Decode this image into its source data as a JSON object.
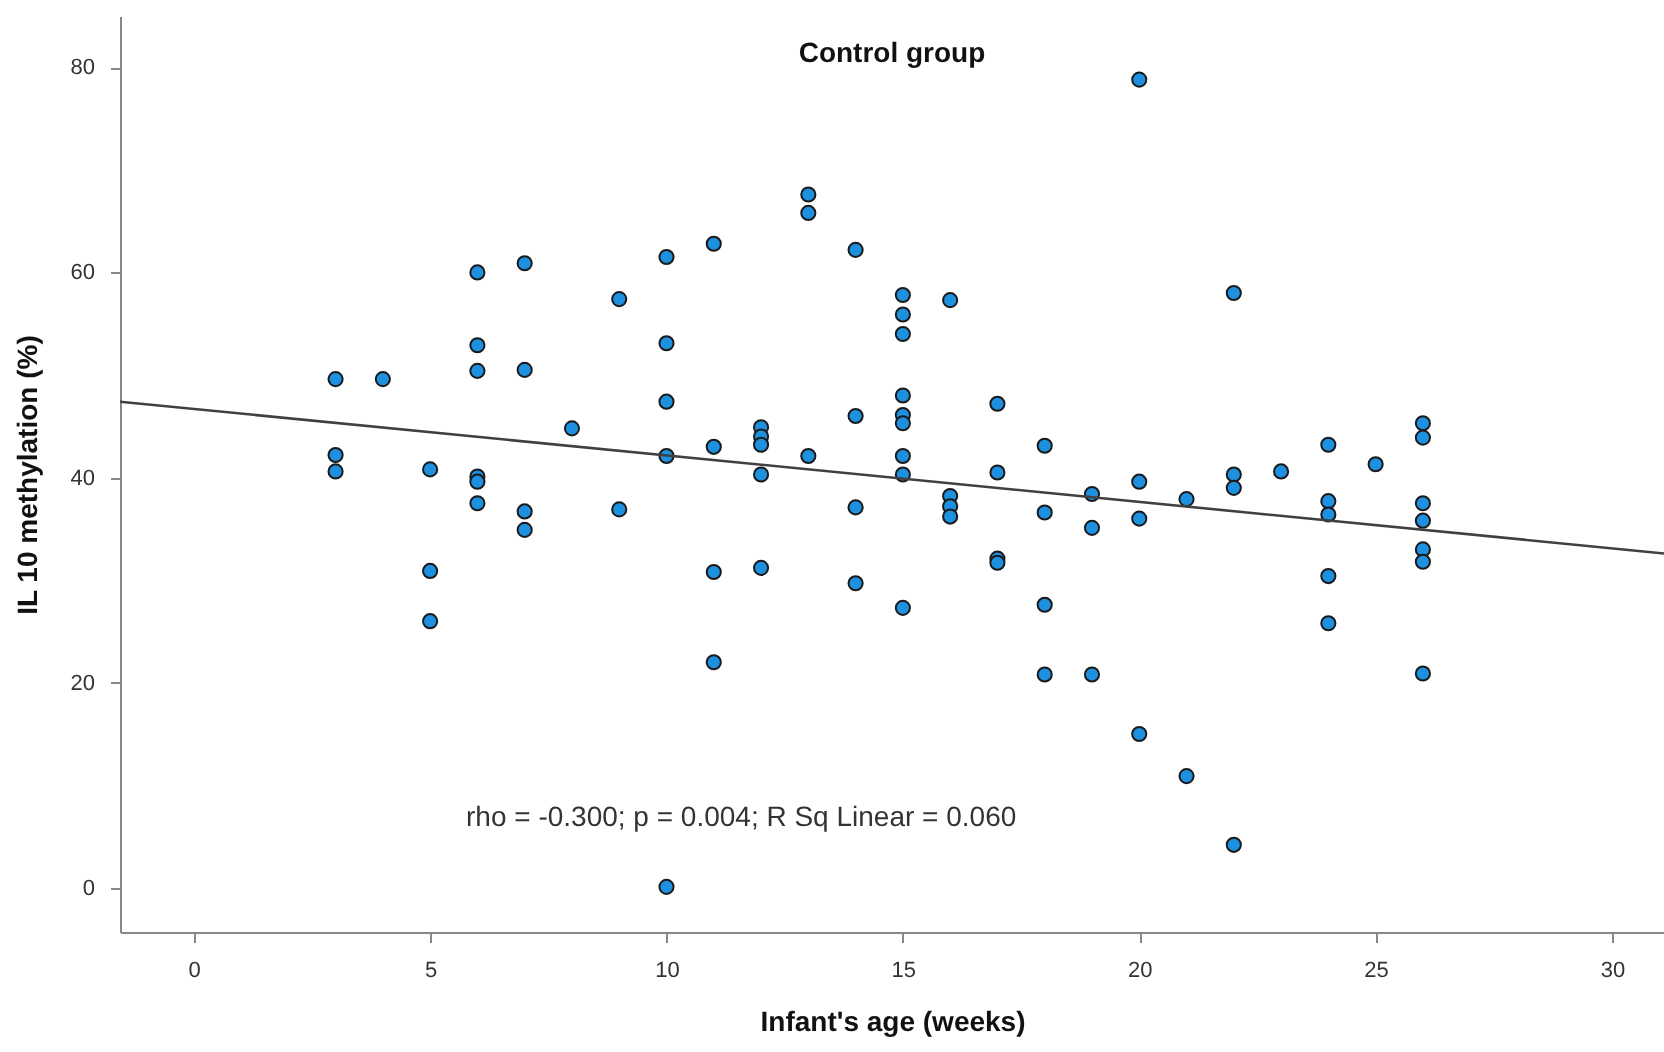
{
  "chart_data": {
    "type": "scatter",
    "title": "Control group",
    "xlabel": "Infant's age (weeks)",
    "ylabel": "IL 10 methylation (%)",
    "xlim": [
      -1.56,
      31.1
    ],
    "ylim": [
      -4.3,
      85
    ],
    "xticks": [
      0,
      5,
      10,
      15,
      20,
      25,
      30
    ],
    "yticks": [
      0,
      20,
      40,
      60,
      80
    ],
    "grid": false,
    "marker": "circle",
    "annotations": [
      "rho = -0.300; p = 0.004; R Sq Linear = 0.060"
    ],
    "series": [
      {
        "color": "#1e90e0",
        "x": [
          3,
          3,
          3,
          4,
          5,
          5,
          5,
          6,
          6,
          6,
          6,
          6,
          6,
          7,
          7,
          7,
          7,
          8,
          9,
          9,
          10,
          10,
          10,
          10,
          10,
          11,
          11,
          11,
          11,
          12,
          12,
          12,
          12,
          12,
          13,
          13,
          13,
          14,
          14,
          14,
          14,
          15,
          15,
          15,
          15,
          15,
          15,
          15,
          15,
          15,
          16,
          16,
          16,
          16,
          17,
          17,
          17,
          17,
          18,
          18,
          18,
          18,
          19,
          19,
          19,
          20,
          20,
          20,
          20,
          21,
          21,
          22,
          22,
          22,
          22,
          23,
          24,
          24,
          24,
          24,
          24,
          25,
          26,
          26,
          26,
          26,
          26,
          26,
          26
        ],
        "values": [
          49.6,
          42.2,
          40.6,
          49.6,
          40.8,
          30.9,
          26.0,
          60.0,
          52.9,
          50.4,
          40.1,
          39.6,
          37.5,
          60.9,
          50.5,
          36.7,
          34.9,
          44.8,
          57.4,
          36.9,
          61.5,
          53.1,
          47.4,
          42.1,
          0.1,
          62.8,
          43.0,
          30.8,
          22.0,
          44.9,
          44.0,
          43.2,
          40.3,
          31.2,
          67.6,
          65.8,
          42.1,
          62.2,
          46.0,
          37.1,
          29.7,
          57.8,
          55.9,
          54.0,
          48.0,
          46.1,
          45.3,
          42.1,
          40.3,
          27.3,
          57.3,
          38.2,
          37.2,
          36.2,
          47.2,
          40.5,
          32.1,
          31.7,
          43.1,
          36.6,
          27.6,
          20.8,
          38.4,
          35.1,
          20.8,
          78.8,
          39.6,
          36.0,
          15.0,
          37.9,
          10.9,
          58.0,
          40.3,
          39.0,
          4.2,
          40.6,
          43.2,
          37.7,
          36.4,
          30.4,
          25.8,
          41.3,
          45.3,
          43.9,
          37.5,
          35.8,
          33.0,
          31.8,
          20.9
        ]
      },
      {
        "type": "line",
        "color": "#404040",
        "x": [
          -1.56,
          31.1
        ],
        "values": [
          47.4,
          32.6
        ],
        "marker": "none"
      }
    ]
  }
}
